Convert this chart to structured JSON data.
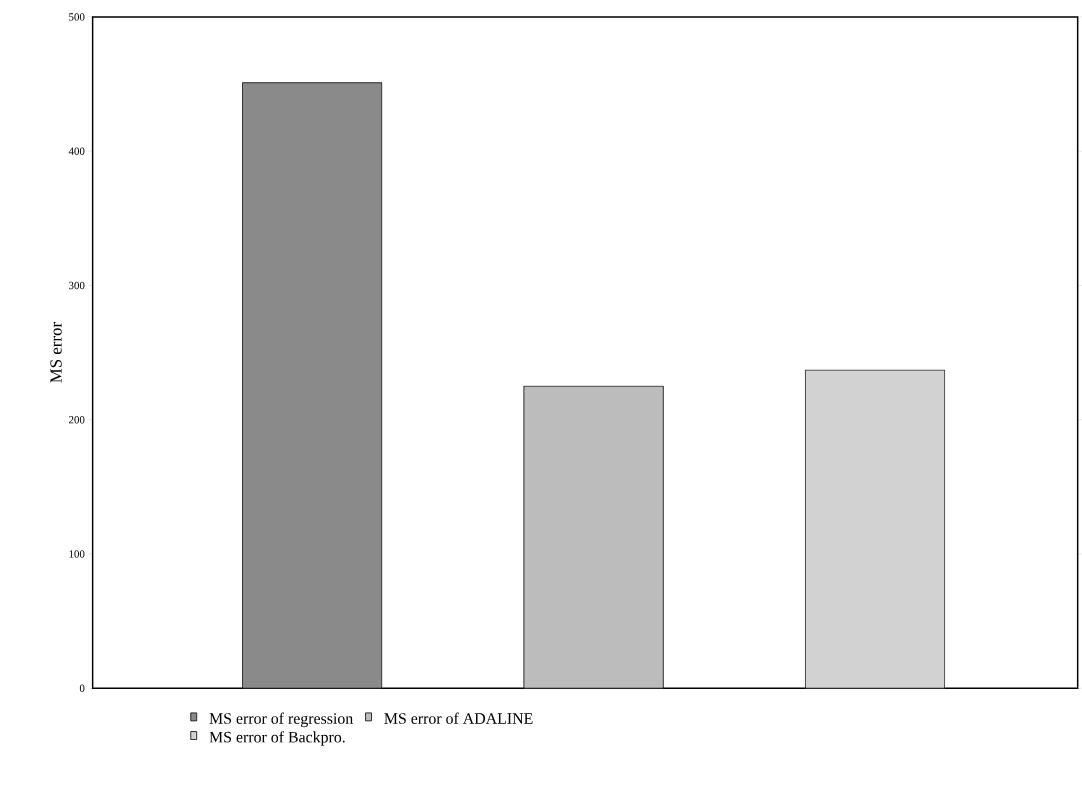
{
  "chart_data": {
    "type": "bar",
    "ylabel": "MS error",
    "categories": [
      null,
      null,
      null
    ],
    "series": [
      {
        "name": "MS error of regression",
        "color": "#8a8a8a",
        "values": [
          451,
          0,
          0
        ]
      },
      {
        "name": "MS error of ADALINE",
        "color": "#bcbcbc",
        "values": [
          0,
          225,
          0
        ]
      },
      {
        "name": "MS error of Backpro.",
        "color": "#d2d2d2",
        "values": [
          0,
          0,
          237
        ]
      }
    ],
    "stacked": true,
    "ylim": [
      0,
      500
    ],
    "yticks": [
      0,
      100,
      200,
      300,
      400,
      500
    ],
    "legend": "bottom"
  }
}
